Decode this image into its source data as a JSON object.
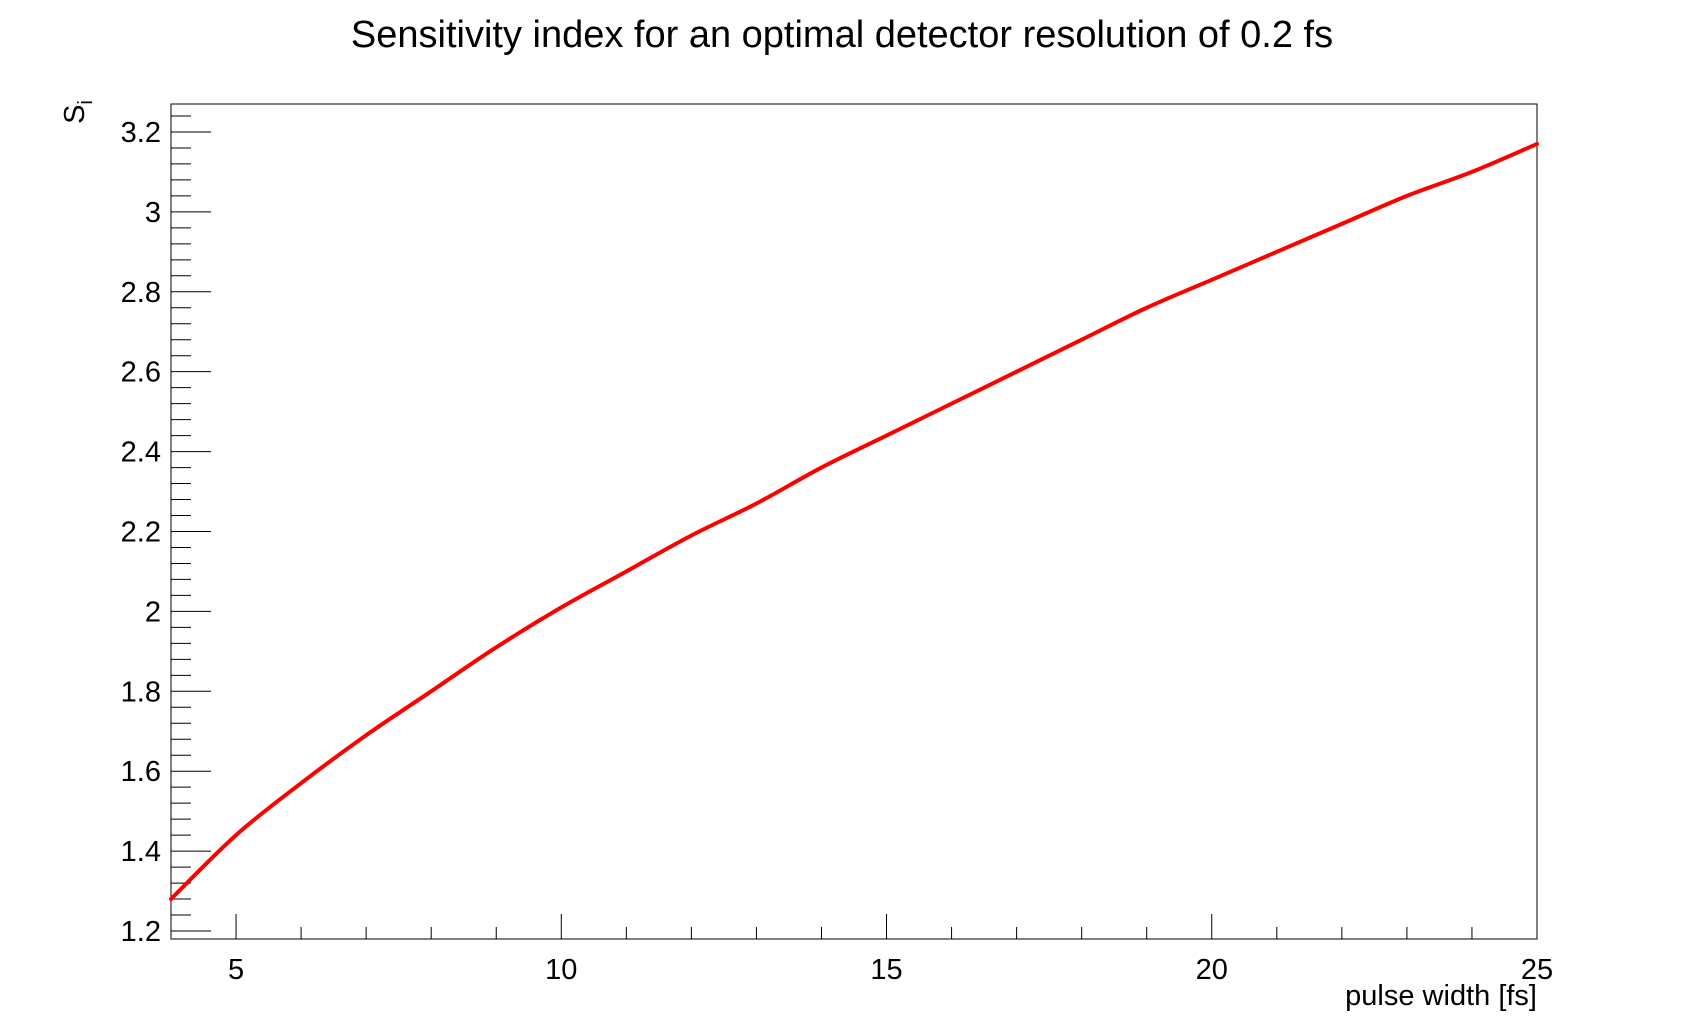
{
  "chart_data": {
    "type": "line",
    "title": "Sensitivity index for an optimal detector resolution of 0.2 fs",
    "xlabel": "pulse width [fs]",
    "ylabel": {
      "base": "S",
      "subscript": "i"
    },
    "xlim": [
      4,
      25
    ],
    "ylim": [
      1.18,
      3.27
    ],
    "xticks": [
      5,
      10,
      15,
      20,
      25
    ],
    "xtick_labels": [
      "5",
      "10",
      "15",
      "20",
      "25"
    ],
    "yticks": [
      1.2,
      1.4,
      1.6,
      1.8,
      2.0,
      2.2,
      2.4,
      2.6,
      2.8,
      3.0,
      3.2
    ],
    "ytick_labels": [
      "1.2",
      "1.4",
      "1.6",
      "1.8",
      "2",
      "2.2",
      "2.4",
      "2.6",
      "2.8",
      "3",
      "3.2"
    ],
    "grid": false,
    "series": [
      {
        "color": "#ff0000",
        "x": [
          4,
          5,
          6,
          7,
          8,
          9,
          10,
          11,
          12,
          13,
          14,
          15,
          16,
          17,
          18,
          19,
          20,
          21,
          22,
          23,
          24,
          25
        ],
        "y": [
          1.28,
          1.44,
          1.57,
          1.69,
          1.8,
          1.91,
          2.01,
          2.1,
          2.19,
          2.27,
          2.36,
          2.44,
          2.52,
          2.6,
          2.68,
          2.76,
          2.83,
          2.9,
          2.97,
          3.04,
          3.1,
          3.17
        ]
      }
    ]
  }
}
